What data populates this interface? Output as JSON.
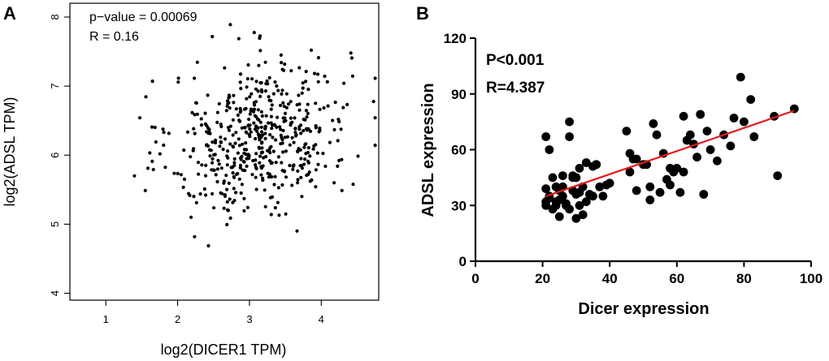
{
  "panels": {
    "a": {
      "label": "A"
    },
    "b": {
      "label": "B"
    }
  },
  "chart_data": [
    {
      "panel": "A",
      "type": "scatter",
      "title": "",
      "xlabel": "log2(DICER1 TPM)",
      "ylabel": "log2(ADSL TPM)",
      "xlim": [
        0.5,
        4.8
      ],
      "ylim": [
        3.9,
        8.2
      ],
      "xticks": [
        1,
        2,
        3,
        4
      ],
      "yticks": [
        4,
        5,
        6,
        7,
        8
      ],
      "annotations": [
        "p−value = 0.00069",
        "R = 0.16"
      ],
      "point_color": "#000000",
      "point_count": 520
    },
    {
      "panel": "B",
      "type": "scatter",
      "title": "",
      "xlabel": "Dicer expression",
      "ylabel": "ADSL expression",
      "xlim": [
        0,
        100
      ],
      "ylim": [
        0,
        120
      ],
      "xticks": [
        0,
        20,
        40,
        60,
        80,
        100
      ],
      "yticks": [
        0,
        30,
        60,
        90,
        120
      ],
      "annotations": [
        "P<0.001",
        "R=4.387"
      ],
      "fit_line": {
        "x": [
          21,
          95
        ],
        "y": [
          35,
          81
        ],
        "color": "#e31a1c"
      },
      "point_color": "#000000",
      "x": [
        21,
        21,
        22,
        22,
        23,
        24,
        24,
        25,
        25,
        26,
        26,
        27,
        28,
        28,
        29,
        29,
        30,
        30,
        31,
        31,
        31,
        32,
        33,
        34,
        35,
        36,
        37,
        38,
        39,
        40,
        21,
        22,
        24,
        26,
        28,
        30,
        33,
        36,
        23,
        25,
        27,
        29,
        32,
        35,
        21,
        45,
        46,
        46,
        47,
        48,
        48,
        50,
        51,
        52,
        53,
        54,
        55,
        56,
        57,
        58,
        59,
        60,
        61,
        62,
        63,
        64,
        65,
        67,
        68,
        69,
        72,
        74,
        76,
        77,
        79,
        80,
        82,
        83,
        89,
        90,
        95,
        52,
        58,
        66,
        62,
        70
      ],
      "y": [
        30,
        39,
        35,
        60,
        28,
        32,
        40,
        24,
        33,
        46,
        40,
        30,
        75,
        67,
        46,
        38,
        45,
        23,
        30,
        50,
        37,
        40,
        53,
        36,
        51,
        52,
        40,
        35,
        41,
        42,
        67,
        34,
        30,
        35,
        28,
        36,
        32,
        52,
        45,
        38,
        31,
        45,
        25,
        35,
        32,
        70,
        58,
        48,
        55,
        55,
        38,
        52,
        52,
        40,
        74,
        68,
        37,
        58,
        44,
        50,
        48,
        50,
        37,
        78,
        65,
        68,
        63,
        79,
        36,
        70,
        54,
        68,
        62,
        77,
        99,
        75,
        87,
        67,
        78,
        46,
        82,
        33,
        41,
        56,
        48,
        60
      ]
    }
  ]
}
